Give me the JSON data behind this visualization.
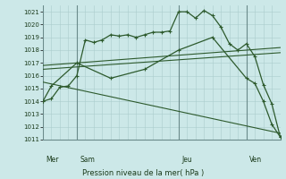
{
  "title": "Pression niveau de la mer( hPa )",
  "background_color": "#cce8e8",
  "grid_color": "#aacccc",
  "line_color": "#2d5a2d",
  "ylim": [
    1011,
    1021.5
  ],
  "yticks": [
    1011,
    1012,
    1013,
    1014,
    1015,
    1016,
    1017,
    1018,
    1019,
    1020,
    1021
  ],
  "xlim": [
    0,
    28
  ],
  "day_labels": [
    "Mer",
    "Sam",
    "Jeu",
    "Ven"
  ],
  "day_positions": [
    0,
    4,
    16,
    24
  ],
  "series1_x": [
    0,
    1,
    2,
    3,
    4,
    5,
    6,
    7,
    8,
    9,
    10,
    11,
    12,
    13,
    14,
    15,
    16,
    17,
    18,
    19,
    20,
    21,
    22,
    23,
    24,
    25,
    26,
    27,
    28
  ],
  "series1_y": [
    1014.0,
    1014.2,
    1015.1,
    1015.2,
    1016.0,
    1018.8,
    1018.6,
    1018.8,
    1019.2,
    1019.1,
    1019.2,
    1019.0,
    1019.2,
    1019.4,
    1019.4,
    1019.5,
    1021.0,
    1021.0,
    1020.5,
    1021.1,
    1020.7,
    1019.8,
    1018.5,
    1018.0,
    1018.5,
    1017.5,
    1015.3,
    1013.8,
    1011.2
  ],
  "series2_x": [
    0,
    1,
    4,
    8,
    12,
    16,
    20,
    24,
    25,
    26,
    27,
    28
  ],
  "series2_y": [
    1014.0,
    1015.2,
    1017.0,
    1015.8,
    1016.5,
    1018.0,
    1019.0,
    1015.8,
    1015.4,
    1014.0,
    1012.2,
    1011.2
  ],
  "series3_x": [
    0,
    28
  ],
  "series3_y": [
    1016.8,
    1018.2
  ],
  "series4_x": [
    0,
    28
  ],
  "series4_y": [
    1016.5,
    1017.8
  ],
  "series5_x": [
    0,
    28
  ],
  "series5_y": [
    1015.5,
    1011.5
  ],
  "vline_positions": [
    0,
    4,
    16,
    24
  ]
}
